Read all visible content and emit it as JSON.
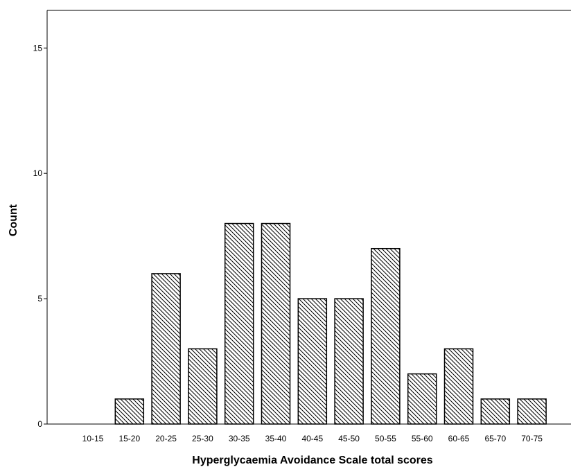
{
  "chart_data": {
    "type": "bar",
    "xlabel": "Hyperglycaemia Avoidance Scale total scores",
    "ylabel": "Count",
    "categories": [
      "10-15",
      "15-20",
      "20-25",
      "25-30",
      "30-35",
      "35-40",
      "40-45",
      "45-50",
      "50-55",
      "55-60",
      "60-65",
      "65-70",
      "70-75"
    ],
    "values": [
      0,
      1,
      6,
      3,
      8,
      8,
      5,
      5,
      7,
      2,
      3,
      1,
      1
    ],
    "ylim": [
      0,
      16.5
    ],
    "yticks": [
      0,
      5,
      10,
      15
    ],
    "grid": false,
    "legend": "none",
    "bar_fill": "#ffffff",
    "bar_stroke": "#000000",
    "hatch_color": "#000000"
  }
}
